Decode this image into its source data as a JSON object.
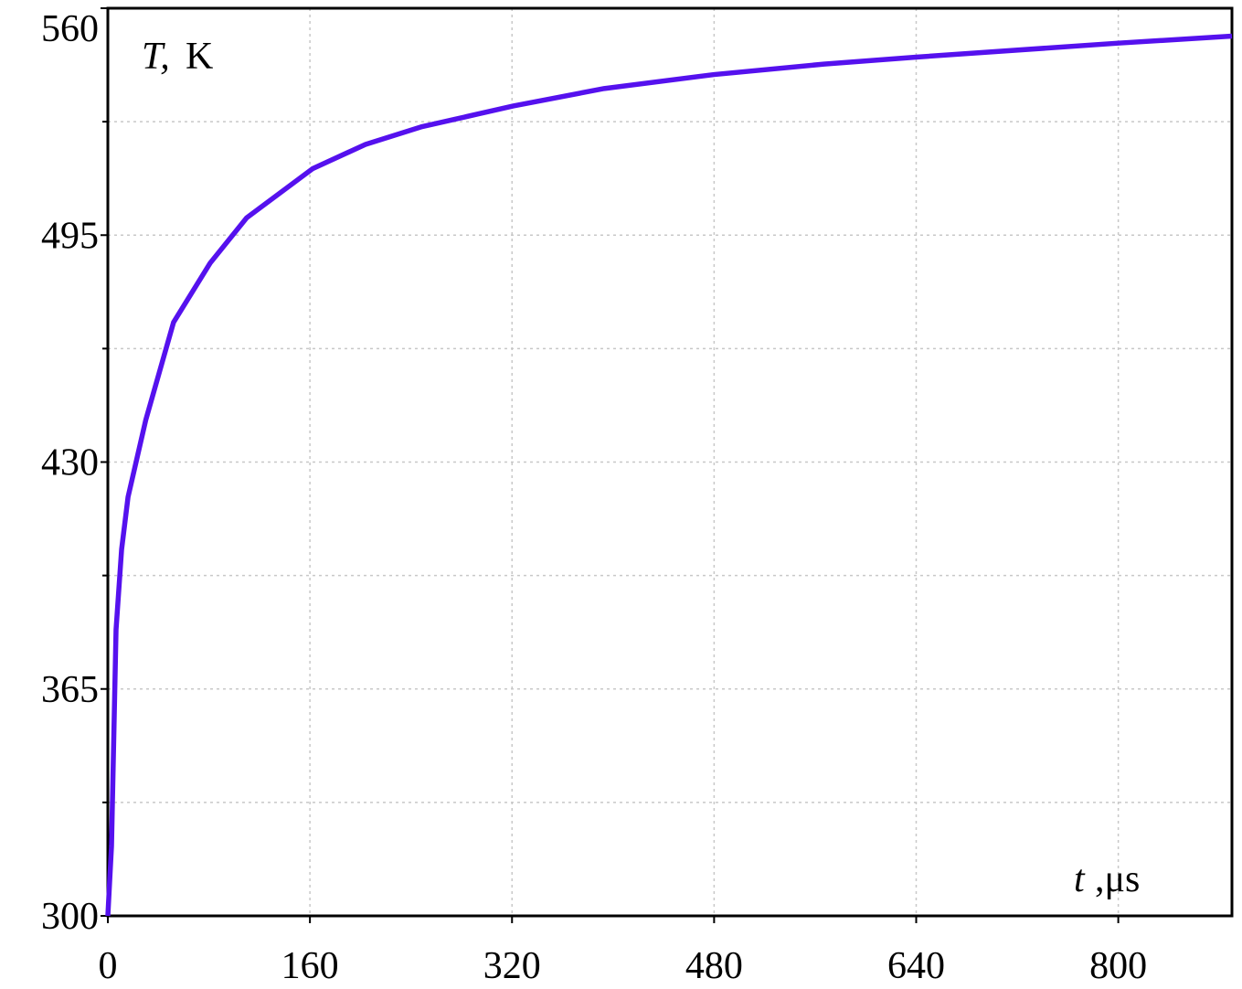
{
  "chart_data": {
    "type": "line",
    "y_label_symbol": "T,",
    "y_label_unit": "K",
    "x_label_symbol": "t",
    "x_label_unit": ",μs",
    "x": [
      0,
      2.9,
      6.5,
      10.9,
      16,
      30,
      52,
      81,
      110,
      162,
      204,
      248,
      321,
      393,
      480,
      567,
      640,
      800,
      890
    ],
    "series": [
      {
        "color": "#5511ee",
        "values": [
          300,
          320,
          382,
          405,
          420,
          442,
          470,
          487,
          500,
          514,
          521,
          526,
          532,
          537,
          541,
          544,
          546,
          550,
          552
        ]
      }
    ],
    "xlim": [
      0,
      890
    ],
    "xticks": [
      0,
      160,
      320,
      480,
      640,
      800
    ],
    "ylim": [
      300,
      560
    ],
    "yticks": [
      300,
      365,
      430,
      495,
      560
    ],
    "yminor": [
      332.5,
      397.5,
      462.5,
      527.5
    ],
    "grid": true
  }
}
